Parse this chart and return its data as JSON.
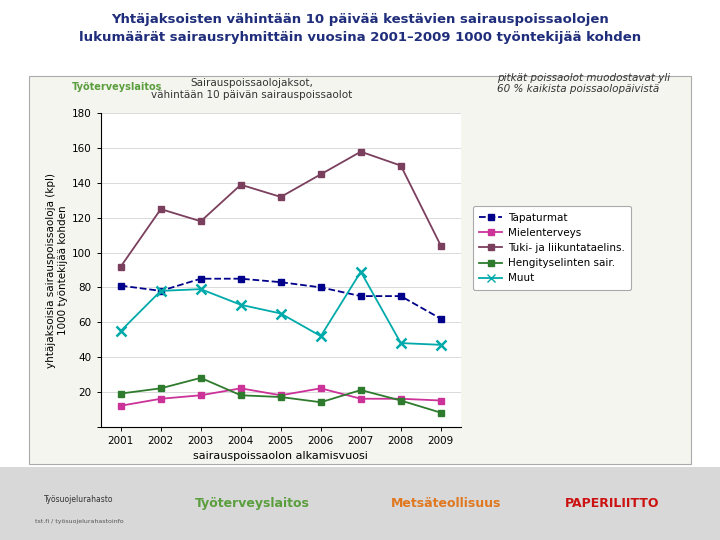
{
  "title_line1": "Yhtäjaksoisten vähintään 10 päivää kestävien sairauspoissaolojen",
  "title_line2": "lukumäärät sairausryhmittäin vuosina 2001–2009 1000 työntekijää kohden",
  "title_color": "#1f2d7b",
  "years": [
    2001,
    2002,
    2003,
    2004,
    2005,
    2006,
    2007,
    2008,
    2009
  ],
  "series_order": [
    "Tapaturmat",
    "Mielenterveys",
    "Tuki- ja liikuntataelins.",
    "Hengityselinten sair.",
    "Muut"
  ],
  "series": {
    "Tapaturmat": {
      "values": [
        81,
        78,
        85,
        85,
        83,
        80,
        75,
        75,
        62
      ],
      "color": "#00008B",
      "marker": "s",
      "linestyle": "--"
    },
    "Mielenterveys": {
      "values": [
        12,
        16,
        18,
        22,
        18,
        22,
        16,
        16,
        15
      ],
      "color": "#cc3399",
      "marker": "s",
      "linestyle": "-"
    },
    "Tuki- ja liikuntataelins.": {
      "values": [
        92,
        125,
        118,
        139,
        132,
        145,
        158,
        150,
        104
      ],
      "color": "#7b3f5e",
      "marker": "s",
      "linestyle": "-"
    },
    "Hengityselinten sair.": {
      "values": [
        19,
        22,
        28,
        18,
        17,
        14,
        21,
        15,
        8
      ],
      "color": "#2e7b2e",
      "marker": "s",
      "linestyle": "-"
    },
    "Muut": {
      "values": [
        55,
        78,
        79,
        70,
        65,
        52,
        89,
        48,
        47
      ],
      "color": "#00aaaa",
      "marker": "x",
      "linestyle": "-"
    }
  },
  "ylabel": "yhtäjaksoisia sairauspoissaoloja (kpl)\n1000 työntekijää kohden",
  "xlabel": "sairauspoissaolon alkamisvuosi",
  "ylim": [
    0,
    180
  ],
  "yticks": [
    0,
    20,
    40,
    60,
    80,
    100,
    120,
    140,
    160,
    180
  ],
  "subtitle_text": "Sairauspoissaolojaksot,\nvähintään 10 päivän sairauspoissaolot",
  "annotation": "pitkät poissaolot muodostavat yli\n60 % kaikista poissaolopäivistä",
  "background_color": "#ffffff",
  "panel_bg_color": "#f5f5f0",
  "plot_bg_color": "#ffffff"
}
